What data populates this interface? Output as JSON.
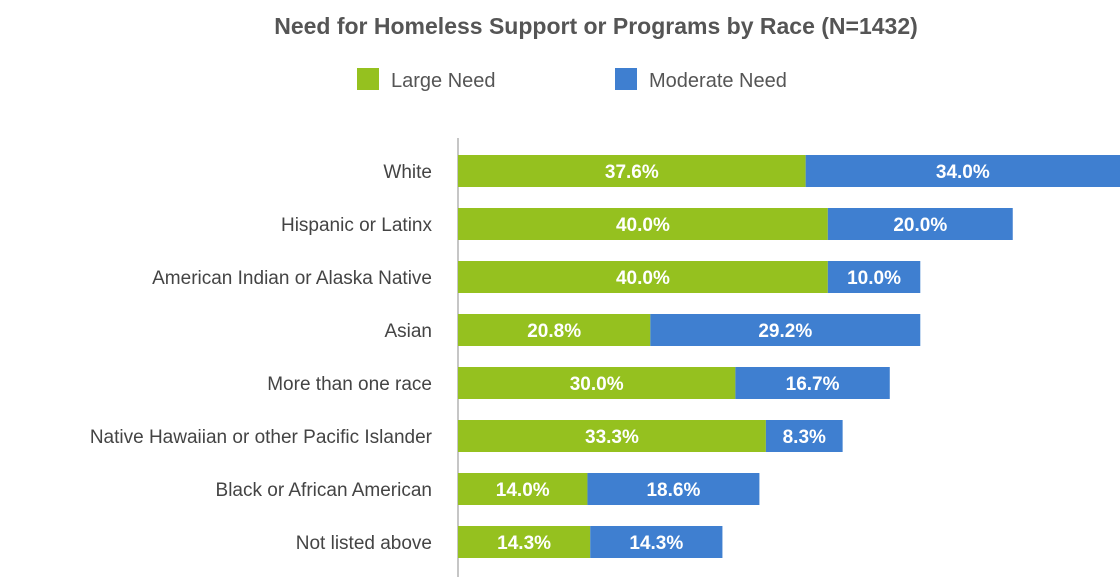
{
  "chart_data": {
    "type": "bar",
    "orientation": "horizontal",
    "stacked": true,
    "title": "Need for Homeless Support or Programs by Race (N=1432)",
    "categories": [
      "White",
      "Hispanic or Latinx",
      "American Indian or Alaska Native",
      "Asian",
      "More than one race",
      "Native Hawaiian or other Pacific Islander",
      "Black or African American",
      "Not listed above"
    ],
    "series": [
      {
        "name": "Large Need",
        "color": "#95c11f",
        "values": [
          37.6,
          40.0,
          40.0,
          20.8,
          30.0,
          33.3,
          14.0,
          14.3
        ],
        "labels": [
          "37.6%",
          "40.0%",
          "40.0%",
          "20.8%",
          "30.0%",
          "33.3%",
          "14.0%",
          "14.3%"
        ]
      },
      {
        "name": "Moderate Need",
        "color": "#3f7fd0",
        "values": [
          34.0,
          20.0,
          10.0,
          29.2,
          16.7,
          8.3,
          18.6,
          14.3
        ],
        "labels": [
          "34.0%",
          "20.0%",
          "10.0%",
          "29.2%",
          "16.7%",
          "8.3%",
          "18.6%",
          "14.3%"
        ]
      }
    ],
    "xlim": [
      0,
      71.6
    ],
    "legend_position": "top-center",
    "grid": false
  }
}
